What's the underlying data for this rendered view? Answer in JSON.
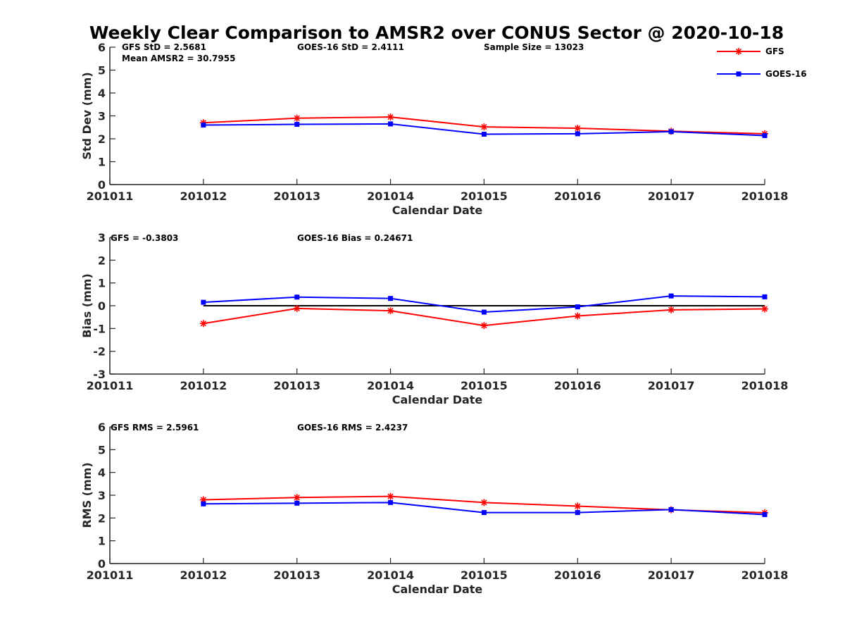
{
  "figure": {
    "title": "Weekly Clear Comparison to AMSR2 over CONUS Sector @ 2020-10-18"
  },
  "legend": {
    "placement": "top-right",
    "entries": [
      {
        "name": "GFS",
        "color": "#ff0000",
        "marker": "asterisk"
      },
      {
        "name": "GOES-16",
        "color": "#0000ff",
        "marker": "square"
      }
    ]
  },
  "annotations": {
    "std": {
      "gfs": "GFS StD = 2.5681",
      "mean": "Mean AMSR2 = 30.7955",
      "goes": "GOES-16 StD = 2.4111",
      "sample": "Sample Size = 13023"
    },
    "bias": {
      "gfs": "GFS = -0.3803",
      "goes": "GOES-16 Bias  = 0.24671"
    },
    "rms": {
      "gfs": "GFS RMS = 2.5961",
      "goes": "GOES-16 RMS = 2.4237"
    }
  },
  "chart_data": [
    {
      "type": "line",
      "xlabel": "Calendar Date",
      "ylabel": "Std Dev (mm)",
      "categories": [
        "201011",
        "201012",
        "201013",
        "201014",
        "201015",
        "201016",
        "201017",
        "201018"
      ],
      "ylim": [
        0,
        6
      ],
      "yticks": [
        0,
        1,
        2,
        3,
        4,
        5,
        6
      ],
      "grid": false,
      "reference_line": null,
      "series": [
        {
          "name": "GFS",
          "color": "#ff0000",
          "marker": "asterisk",
          "values": [
            null,
            2.7,
            2.9,
            2.95,
            2.52,
            2.46,
            2.33,
            2.22
          ]
        },
        {
          "name": "GOES-16",
          "color": "#0000ff",
          "marker": "square",
          "values": [
            null,
            2.6,
            2.63,
            2.65,
            2.2,
            2.22,
            2.31,
            2.14
          ]
        }
      ]
    },
    {
      "type": "line",
      "xlabel": "Calendar Date",
      "ylabel": "Bias (mm)",
      "categories": [
        "201011",
        "201012",
        "201013",
        "201014",
        "201015",
        "201016",
        "201017",
        "201018"
      ],
      "ylim": [
        -3,
        3
      ],
      "yticks": [
        -3,
        -2,
        -1,
        0,
        1,
        2,
        3
      ],
      "grid": false,
      "reference_line": 0,
      "series": [
        {
          "name": "GFS",
          "color": "#ff0000",
          "marker": "asterisk",
          "values": [
            null,
            -0.78,
            -0.12,
            -0.22,
            -0.87,
            -0.45,
            -0.18,
            -0.14
          ]
        },
        {
          "name": "GOES-16",
          "color": "#0000ff",
          "marker": "square",
          "values": [
            null,
            0.15,
            0.38,
            0.32,
            -0.28,
            -0.05,
            0.43,
            0.39
          ]
        }
      ]
    },
    {
      "type": "line",
      "xlabel": "Calendar Date",
      "ylabel": "RMS (mm)",
      "categories": [
        "201011",
        "201012",
        "201013",
        "201014",
        "201015",
        "201016",
        "201017",
        "201018"
      ],
      "ylim": [
        0,
        6
      ],
      "yticks": [
        0,
        1,
        2,
        3,
        4,
        5,
        6
      ],
      "grid": false,
      "reference_line": null,
      "series": [
        {
          "name": "GFS",
          "color": "#ff0000",
          "marker": "asterisk",
          "values": [
            null,
            2.8,
            2.9,
            2.95,
            2.68,
            2.52,
            2.36,
            2.23
          ]
        },
        {
          "name": "GOES-16",
          "color": "#0000ff",
          "marker": "square",
          "values": [
            null,
            2.62,
            2.65,
            2.68,
            2.24,
            2.24,
            2.37,
            2.15
          ]
        }
      ]
    }
  ]
}
